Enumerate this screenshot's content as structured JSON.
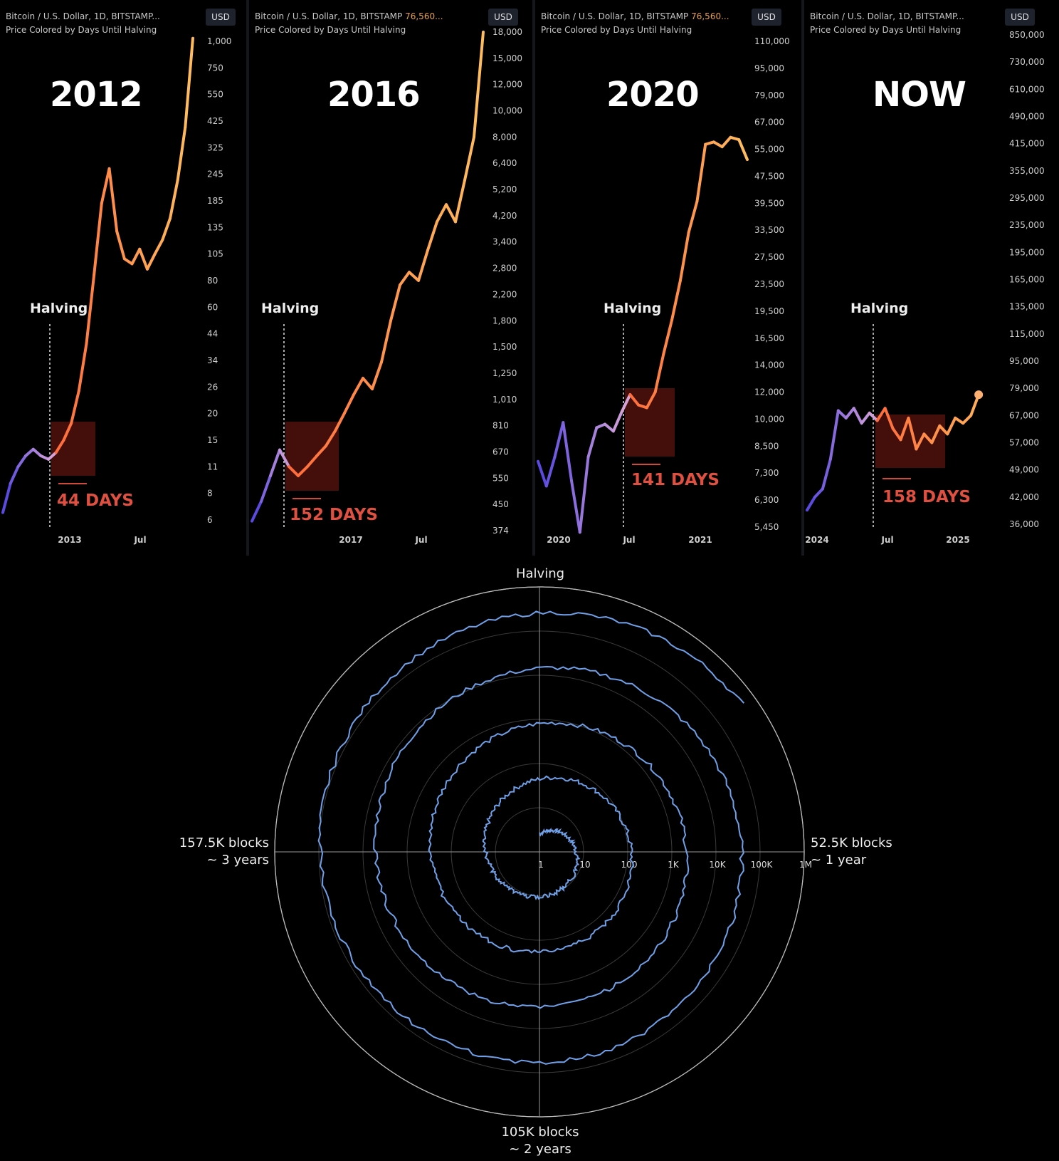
{
  "panels": [
    {
      "header_line1": "Bitcoin / U.S. Dollar, 1D, BITSTAMP...",
      "header_price": "",
      "header_line2": "Price Colored by Days Until Halving",
      "currency": "USD",
      "big_label": "2012",
      "halving_label": "Halving",
      "days_label": "44 DAYS",
      "y_ticks": [
        "1,000",
        "750",
        "550",
        "425",
        "325",
        "245",
        "185",
        "135",
        "105",
        "80",
        "60",
        "44",
        "34",
        "26",
        "20",
        "15",
        "11",
        "8",
        "6"
      ],
      "x_ticks": [
        "2013",
        "Jul"
      ]
    },
    {
      "header_line1": "Bitcoin / U.S. Dollar, 1D, BITSTAMP",
      "header_price": "76,560...",
      "header_line2": "Price Colored by Days Until Halving",
      "currency": "USD",
      "big_label": "2016",
      "halving_label": "Halving",
      "days_label": "152 DAYS",
      "y_ticks": [
        "18,000",
        "15,000",
        "12,000",
        "10,000",
        "8,000",
        "6,400",
        "5,200",
        "4,200",
        "3,400",
        "2,800",
        "2,200",
        "1,800",
        "1,500",
        "1,250",
        "1,010",
        "810",
        "670",
        "550",
        "450",
        "374"
      ],
      "x_ticks": [
        "2017",
        "Jul"
      ]
    },
    {
      "header_line1": "Bitcoin / U.S. Dollar, 1D, BITSTAMP",
      "header_price": "76,560...",
      "header_line2": "Price Colored by Days Until Halving",
      "currency": "USD",
      "big_label": "2020",
      "halving_label": "Halving",
      "days_label": "141 DAYS",
      "y_ticks": [
        "110,000",
        "95,000",
        "79,000",
        "67,000",
        "55,000",
        "47,500",
        "39,500",
        "33,500",
        "27,500",
        "23,500",
        "19,500",
        "16,500",
        "14,000",
        "12,000",
        "10,000",
        "8,500",
        "7,300",
        "6,300",
        "5,450"
      ],
      "x_ticks": [
        "2020",
        "Jul",
        "2021"
      ]
    },
    {
      "header_line1": "Bitcoin / U.S. Dollar, 1D, BITSTAMP...",
      "header_price": "",
      "header_line2": "Price Colored by Days Until Halving",
      "currency": "USD",
      "big_label": "NOW",
      "halving_label": "Halving",
      "days_label": "158 DAYS",
      "y_ticks": [
        "850,000",
        "730,000",
        "610,000",
        "490,000",
        "415,000",
        "355,000",
        "295,000",
        "235,000",
        "195,000",
        "165,000",
        "135,000",
        "115,000",
        "95,000",
        "79,000",
        "67,000",
        "57,000",
        "49,000",
        "42,000",
        "36,000"
      ],
      "x_ticks": [
        "2024",
        "Jul",
        "2025"
      ]
    }
  ],
  "polar": {
    "top_label": "Halving",
    "right_label_1": "52.5K blocks",
    "right_label_2": "~ 1 year",
    "left_label_1": "157.5K blocks",
    "left_label_2": "~ 3 years",
    "bottom_label_1": "105K blocks",
    "bottom_label_2": "~ 2 years",
    "radial_ticks": [
      "1",
      "10",
      "100",
      "1K",
      "10K",
      "100K",
      "1M"
    ],
    "line_color": "#6fa0e8"
  },
  "chart_data": [
    {
      "type": "line",
      "title": "",
      "ylabel": "USD",
      "scale": "log",
      "x_ticks": [
        "2013",
        "Jul"
      ],
      "x": [
        0,
        4,
        8,
        12,
        16,
        20,
        24,
        28,
        32,
        36,
        40,
        44,
        48,
        52,
        56,
        60,
        64,
        68,
        72,
        76,
        80,
        84,
        88,
        92,
        96,
        100
      ],
      "values": [
        6.5,
        9,
        11,
        12.5,
        13.5,
        12.5,
        12,
        13,
        15,
        18,
        25,
        40,
        85,
        180,
        260,
        130,
        100,
        95,
        110,
        90,
        105,
        120,
        150,
        230,
        400,
        1100
      ]
    },
    {
      "type": "line",
      "title": "",
      "ylabel": "USD",
      "scale": "log",
      "x_ticks": [
        "2017",
        "Jul"
      ],
      "x": [
        0,
        4,
        8,
        12,
        16,
        20,
        24,
        28,
        32,
        36,
        40,
        44,
        48,
        52,
        56,
        60,
        64,
        68,
        72,
        76,
        80,
        84,
        88,
        92,
        96,
        100
      ],
      "values": [
        400,
        460,
        560,
        680,
        600,
        560,
        600,
        650,
        700,
        780,
        900,
        1050,
        1200,
        1100,
        1350,
        1800,
        2400,
        2700,
        2500,
        3200,
        4000,
        4600,
        4000,
        5600,
        8000,
        18000
      ]
    },
    {
      "type": "line",
      "title": "",
      "ylabel": "USD",
      "scale": "log",
      "x_ticks": [
        "2020",
        "Jul",
        "2021"
      ],
      "x": [
        0,
        4,
        8,
        12,
        16,
        20,
        24,
        28,
        32,
        36,
        40,
        44,
        48,
        52,
        56,
        60,
        64,
        68,
        72,
        76,
        80,
        84,
        88,
        92,
        96,
        100
      ],
      "values": [
        7800,
        6800,
        8000,
        9800,
        7000,
        5300,
        8000,
        9500,
        9700,
        9300,
        10500,
        11800,
        11000,
        10800,
        12000,
        15000,
        18500,
        24000,
        33000,
        40000,
        57000,
        58000,
        56000,
        60000,
        59000,
        52000
      ]
    },
    {
      "type": "line",
      "title": "",
      "ylabel": "USD",
      "scale": "log",
      "x_ticks": [
        "2024",
        "Jul",
        "2025"
      ],
      "x": [
        0,
        4,
        8,
        12,
        16,
        20,
        24,
        28,
        32,
        36,
        40,
        44,
        48,
        52,
        56,
        60,
        64,
        68,
        72,
        76,
        80,
        84,
        88
      ],
      "values": [
        39000,
        42000,
        44000,
        52000,
        69000,
        66000,
        70000,
        64000,
        68000,
        65000,
        70000,
        62000,
        58000,
        66000,
        55000,
        60000,
        57000,
        63000,
        60000,
        66000,
        64000,
        67000,
        76000
      ]
    }
  ]
}
